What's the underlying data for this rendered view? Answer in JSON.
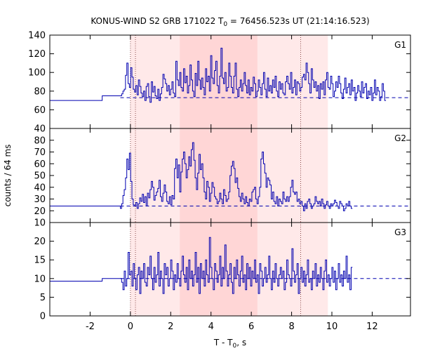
{
  "chart_data": {
    "type": "line",
    "title_main": "KONUS-WIND S2 GRB 171022 T",
    "title_sub": "0",
    "title_rest": " = 76456.523s UT (21:14:16.523)",
    "xlabel_main": "T - T",
    "xlabel_sub": "0",
    "xlabel_rest": ", s",
    "ylabel": "counts / 64 ms",
    "xlim": [
      -4.0,
      13.9
    ],
    "xticks": [
      -2,
      0,
      2,
      4,
      6,
      8,
      10,
      12
    ],
    "light_region": [
      0.0,
      9.8
    ],
    "dark_region": [
      2.45,
      6.3
    ],
    "vlines": [
      0.0,
      0.25,
      8.45
    ],
    "colors": {
      "series": "#0000b0",
      "shade_light": "#ffe9e9",
      "shade_dark": "#ffd6d6",
      "vline": "#8b4a4a"
    },
    "panels": [
      {
        "label": "G1",
        "ylim": [
          40,
          140
        ],
        "yticks": [
          40,
          60,
          80,
          100,
          120,
          140
        ],
        "background": 73,
        "pre_segments": [
          [
            -4.0,
            -1.4,
            70
          ],
          [
            -1.4,
            -0.5,
            75
          ]
        ],
        "start": -0.5,
        "dt": 0.064,
        "values": [
          75,
          77,
          80,
          82,
          97,
          110,
          88,
          84,
          105,
          95,
          82,
          79,
          86,
          76,
          92,
          85,
          78,
          74,
          80,
          70,
          85,
          88,
          74,
          68,
          90,
          79,
          85,
          75,
          72,
          82,
          70,
          77,
          84,
          98,
          93,
          88,
          80,
          86,
          76,
          82,
          90,
          78,
          74,
          112,
          92,
          86,
          100,
          84,
          80,
          104,
          89,
          96,
          78,
          86,
          108,
          92,
          80,
          74,
          99,
          86,
          112,
          92,
          82,
          94,
          84,
          76,
          104,
          90,
          96,
          80,
          118,
          94,
          88,
          102,
          112,
          86,
          78,
          96,
          126,
          94,
          88,
          100,
          80,
          84,
          110,
          96,
          84,
          78,
          96,
          110,
          82,
          74,
          84,
          92,
          80,
          88,
          100,
          86,
          78,
          92,
          76,
          84,
          80,
          95,
          88,
          74,
          80,
          92,
          84,
          76,
          88,
          100,
          82,
          74,
          94,
          80,
          86,
          78,
          92,
          84,
          96,
          80,
          74,
          90,
          82,
          88,
          78,
          76,
          90,
          96,
          88,
          82,
          100,
          78,
          84,
          92,
          76,
          90,
          88,
          80,
          84,
          95,
          98,
          92,
          110,
          100,
          88,
          78,
          104,
          92,
          84,
          90,
          80,
          86,
          72,
          88,
          82,
          90,
          76,
          92,
          100,
          84,
          82,
          96,
          88,
          74,
          80,
          90,
          84,
          96,
          88,
          78,
          72,
          82,
          94,
          78,
          84,
          88,
          76,
          92,
          80,
          84,
          70,
          78,
          86,
          80,
          74,
          90,
          78,
          84,
          88,
          72,
          80,
          76,
          84,
          70,
          78,
          92,
          76,
          84,
          80,
          70,
          74,
          88,
          80,
          70
        ]
      },
      {
        "label": "G2",
        "ylim": [
          10,
          90
        ],
        "yticks": [
          10,
          20,
          30,
          40,
          50,
          60,
          70,
          80
        ],
        "background": 24,
        "pre_segments": [
          [
            -4.0,
            -0.5,
            24
          ]
        ],
        "start": -0.5,
        "dt": 0.064,
        "values": [
          22,
          26,
          33,
          38,
          48,
          64,
          55,
          69,
          45,
          30,
          25,
          24,
          27,
          22,
          26,
          31,
          28,
          34,
          27,
          32,
          24,
          35,
          31,
          38,
          45,
          40,
          29,
          33,
          36,
          39,
          46,
          32,
          28,
          35,
          42,
          36,
          28,
          26,
          32,
          25,
          33,
          30,
          56,
          64,
          48,
          59,
          36,
          53,
          64,
          70,
          60,
          48,
          55,
          66,
          58,
          72,
          78,
          63,
          48,
          38,
          52,
          68,
          55,
          60,
          48,
          36,
          30,
          45,
          40,
          28,
          35,
          44,
          40,
          32,
          30,
          26,
          28,
          35,
          30,
          26,
          38,
          33,
          28,
          30,
          36,
          50,
          58,
          62,
          56,
          44,
          48,
          39,
          32,
          28,
          35,
          30,
          26,
          32,
          27,
          24,
          30,
          28,
          36,
          38,
          40,
          30,
          26,
          32,
          40,
          64,
          70,
          60,
          52,
          40,
          48,
          46,
          42,
          30,
          36,
          28,
          26,
          32,
          24,
          30,
          28,
          26,
          36,
          30,
          28,
          32,
          28,
          32,
          40,
          46,
          36,
          34,
          36,
          28,
          30,
          26,
          28,
          24,
          20,
          26,
          22,
          28,
          30,
          26,
          22,
          24,
          26,
          32,
          28,
          26,
          28,
          24,
          30,
          26,
          22,
          25,
          28,
          24,
          22,
          26,
          24,
          26,
          29,
          27,
          24,
          22,
          28,
          26,
          24,
          20,
          22,
          26,
          24,
          28,
          24,
          22
        ]
      },
      {
        "label": "G3",
        "ylim": [
          0,
          25
        ],
        "yticks": [
          0,
          5,
          10,
          15,
          20
        ],
        "background": 10,
        "pre_segments": [
          [
            -4.0,
            -1.4,
            9.3
          ],
          [
            -1.4,
            -0.5,
            10.0
          ]
        ],
        "start": -0.5,
        "dt": 0.064,
        "values": [
          10,
          9,
          7,
          12,
          8,
          10,
          17,
          11,
          12,
          8,
          14,
          10,
          7,
          11,
          13,
          6,
          12,
          10,
          14,
          9,
          8,
          13,
          11,
          16,
          10,
          7,
          13,
          9,
          11,
          17,
          8,
          12,
          10,
          6,
          14,
          11,
          13,
          8,
          10,
          15,
          12,
          7,
          11,
          9,
          14,
          10,
          8,
          12,
          16,
          11,
          9,
          13,
          7,
          15,
          10,
          12,
          8,
          11,
          17,
          9,
          13,
          6,
          14,
          10,
          12,
          8,
          15,
          11,
          9,
          21,
          13,
          10,
          7,
          14,
          12,
          9,
          11,
          16,
          8,
          13,
          10,
          19,
          12,
          8,
          11,
          14,
          9,
          6,
          13,
          10,
          15,
          11,
          8,
          12,
          16,
          9,
          11,
          7,
          14,
          10,
          13,
          8,
          12,
          10,
          15,
          9,
          11,
          6,
          14,
          12,
          8,
          10,
          13,
          9,
          11,
          16,
          10,
          7,
          12,
          9,
          14,
          10,
          8,
          11,
          13,
          10,
          12,
          7,
          9,
          15,
          11,
          10,
          8,
          18,
          12,
          9,
          11,
          14,
          6,
          10,
          13,
          9,
          12,
          8,
          11,
          15,
          9,
          10,
          7,
          12,
          10,
          14,
          8,
          11,
          9,
          13,
          10,
          7,
          12,
          15,
          9,
          11,
          8,
          10,
          13,
          9,
          12,
          7,
          10,
          14,
          9,
          11,
          8,
          12,
          10,
          16,
          9,
          11,
          7,
          13
        ]
      }
    ]
  }
}
